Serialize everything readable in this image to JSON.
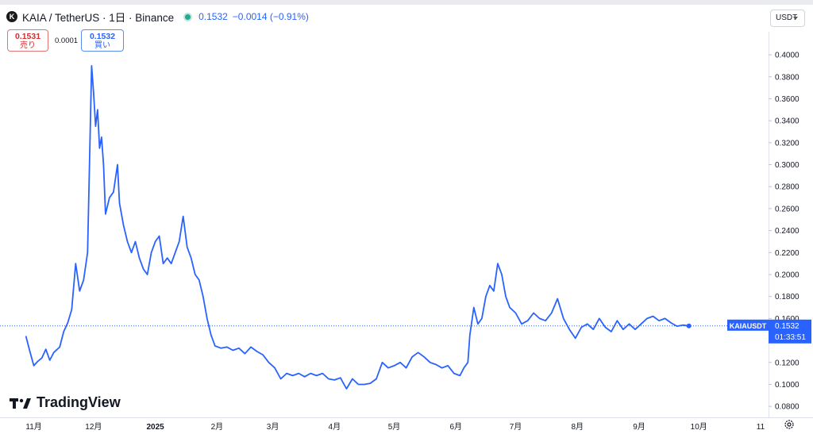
{
  "header": {
    "symbol_icon": "kaia-logo-icon",
    "title": "KAIA / TetherUS · 1日 · Binance",
    "last": "0.1532",
    "change": "−0.0014 (−0.91%)"
  },
  "trade": {
    "sell_price": "0.1531",
    "sell_label": "売り",
    "spread": "0.0001",
    "buy_price": "0.1532",
    "buy_label": "買い"
  },
  "currency_button": "USDT",
  "price_tag": {
    "symbol": "KAIAUSDT",
    "price": "0.1532",
    "countdown": "01:33:51"
  },
  "branding": "TradingView",
  "colors": {
    "line": "#2962ff",
    "price_tag_bg": "#2962ff",
    "dotted_line": "#2962ff"
  },
  "chart_data": {
    "type": "line",
    "series": [
      {
        "name": "KAIAUSDT",
        "points": [
          [
            "2024-10-28",
            0.144
          ],
          [
            "2024-10-30",
            0.13
          ],
          [
            "2024-11-01",
            0.117
          ],
          [
            "2024-11-03",
            0.121
          ],
          [
            "2024-11-05",
            0.124
          ],
          [
            "2024-11-07",
            0.132
          ],
          [
            "2024-11-09",
            0.122
          ],
          [
            "2024-11-11",
            0.129
          ],
          [
            "2024-11-14",
            0.134
          ],
          [
            "2024-11-16",
            0.148
          ],
          [
            "2024-11-18",
            0.156
          ],
          [
            "2024-11-20",
            0.168
          ],
          [
            "2024-11-22",
            0.21
          ],
          [
            "2024-11-24",
            0.185
          ],
          [
            "2024-11-26",
            0.195
          ],
          [
            "2024-11-28",
            0.22
          ],
          [
            "2024-11-30",
            0.39
          ],
          [
            "2024-12-01",
            0.365
          ],
          [
            "2024-12-02",
            0.335
          ],
          [
            "2024-12-03",
            0.35
          ],
          [
            "2024-12-04",
            0.315
          ],
          [
            "2024-12-05",
            0.325
          ],
          [
            "2024-12-06",
            0.3
          ],
          [
            "2024-12-07",
            0.255
          ],
          [
            "2024-12-09",
            0.27
          ],
          [
            "2024-12-11",
            0.275
          ],
          [
            "2024-12-13",
            0.3
          ],
          [
            "2024-12-14",
            0.265
          ],
          [
            "2024-12-16",
            0.245
          ],
          [
            "2024-12-18",
            0.23
          ],
          [
            "2024-12-20",
            0.22
          ],
          [
            "2024-12-22",
            0.23
          ],
          [
            "2024-12-24",
            0.215
          ],
          [
            "2024-12-26",
            0.205
          ],
          [
            "2024-12-28",
            0.2
          ],
          [
            "2024-12-30",
            0.22
          ],
          [
            "2025-01-01",
            0.23
          ],
          [
            "2025-01-03",
            0.235
          ],
          [
            "2025-01-05",
            0.21
          ],
          [
            "2025-01-07",
            0.215
          ],
          [
            "2025-01-09",
            0.21
          ],
          [
            "2025-01-11",
            0.22
          ],
          [
            "2025-01-13",
            0.23
          ],
          [
            "2025-01-15",
            0.253
          ],
          [
            "2025-01-17",
            0.225
          ],
          [
            "2025-01-19",
            0.215
          ],
          [
            "2025-01-21",
            0.2
          ],
          [
            "2025-01-23",
            0.195
          ],
          [
            "2025-01-25",
            0.18
          ],
          [
            "2025-01-27",
            0.16
          ],
          [
            "2025-01-29",
            0.145
          ],
          [
            "2025-01-31",
            0.135
          ],
          [
            "2025-02-03",
            0.133
          ],
          [
            "2025-02-06",
            0.134
          ],
          [
            "2025-02-09",
            0.131
          ],
          [
            "2025-02-12",
            0.133
          ],
          [
            "2025-02-15",
            0.128
          ],
          [
            "2025-02-18",
            0.134
          ],
          [
            "2025-02-21",
            0.13
          ],
          [
            "2025-02-24",
            0.127
          ],
          [
            "2025-02-27",
            0.12
          ],
          [
            "2025-03-02",
            0.115
          ],
          [
            "2025-03-05",
            0.105
          ],
          [
            "2025-03-08",
            0.11
          ],
          [
            "2025-03-11",
            0.108
          ],
          [
            "2025-03-14",
            0.11
          ],
          [
            "2025-03-17",
            0.107
          ],
          [
            "2025-03-20",
            0.11
          ],
          [
            "2025-03-23",
            0.108
          ],
          [
            "2025-03-26",
            0.11
          ],
          [
            "2025-03-29",
            0.105
          ],
          [
            "2025-04-01",
            0.104
          ],
          [
            "2025-04-04",
            0.106
          ],
          [
            "2025-04-07",
            0.096
          ],
          [
            "2025-04-10",
            0.105
          ],
          [
            "2025-04-13",
            0.1
          ],
          [
            "2025-04-16",
            0.1
          ],
          [
            "2025-04-19",
            0.101
          ],
          [
            "2025-04-22",
            0.105
          ],
          [
            "2025-04-25",
            0.12
          ],
          [
            "2025-04-28",
            0.115
          ],
          [
            "2025-05-01",
            0.117
          ],
          [
            "2025-05-04",
            0.12
          ],
          [
            "2025-05-07",
            0.115
          ],
          [
            "2025-05-10",
            0.125
          ],
          [
            "2025-05-13",
            0.129
          ],
          [
            "2025-05-16",
            0.125
          ],
          [
            "2025-05-19",
            0.12
          ],
          [
            "2025-05-22",
            0.118
          ],
          [
            "2025-05-25",
            0.115
          ],
          [
            "2025-05-28",
            0.117
          ],
          [
            "2025-05-31",
            0.11
          ],
          [
            "2025-06-03",
            0.108
          ],
          [
            "2025-06-05",
            0.115
          ],
          [
            "2025-06-07",
            0.12
          ],
          [
            "2025-06-08",
            0.145
          ],
          [
            "2025-06-10",
            0.17
          ],
          [
            "2025-06-12",
            0.155
          ],
          [
            "2025-06-14",
            0.16
          ],
          [
            "2025-06-16",
            0.18
          ],
          [
            "2025-06-18",
            0.19
          ],
          [
            "2025-06-20",
            0.185
          ],
          [
            "2025-06-22",
            0.21
          ],
          [
            "2025-06-24",
            0.2
          ],
          [
            "2025-06-26",
            0.18
          ],
          [
            "2025-06-28",
            0.17
          ],
          [
            "2025-07-01",
            0.165
          ],
          [
            "2025-07-04",
            0.155
          ],
          [
            "2025-07-07",
            0.158
          ],
          [
            "2025-07-10",
            0.165
          ],
          [
            "2025-07-13",
            0.16
          ],
          [
            "2025-07-16",
            0.158
          ],
          [
            "2025-07-19",
            0.165
          ],
          [
            "2025-07-22",
            0.178
          ],
          [
            "2025-07-25",
            0.16
          ],
          [
            "2025-07-28",
            0.15
          ],
          [
            "2025-07-31",
            0.142
          ],
          [
            "2025-08-03",
            0.152
          ],
          [
            "2025-08-06",
            0.155
          ],
          [
            "2025-08-09",
            0.15
          ],
          [
            "2025-08-12",
            0.16
          ],
          [
            "2025-08-15",
            0.152
          ],
          [
            "2025-08-18",
            0.148
          ],
          [
            "2025-08-21",
            0.158
          ],
          [
            "2025-08-24",
            0.15
          ],
          [
            "2025-08-27",
            0.155
          ],
          [
            "2025-08-30",
            0.15
          ],
          [
            "2025-09-02",
            0.155
          ],
          [
            "2025-09-05",
            0.16
          ],
          [
            "2025-09-08",
            0.162
          ],
          [
            "2025-09-11",
            0.158
          ],
          [
            "2025-09-14",
            0.16
          ],
          [
            "2025-09-17",
            0.156
          ],
          [
            "2025-09-20",
            0.153
          ],
          [
            "2025-09-23",
            0.154
          ],
          [
            "2025-09-26",
            0.1532
          ]
        ]
      }
    ],
    "xlim": [
      "2024-10-15",
      "2025-11-05"
    ],
    "ylim": [
      0.07,
      0.421
    ],
    "y_ticks": [
      "0.4000",
      "0.3800",
      "0.3600",
      "0.3400",
      "0.3200",
      "0.3000",
      "0.2800",
      "0.2600",
      "0.2400",
      "0.2200",
      "0.2000",
      "0.1800",
      "0.1600",
      "0.1400",
      "0.1200",
      "0.1000",
      "0.0800"
    ],
    "x_ticks": [
      {
        "label": "11月",
        "date": "2024-11-01"
      },
      {
        "label": "12月",
        "date": "2024-12-01"
      },
      {
        "label": "2025",
        "date": "2025-01-01"
      },
      {
        "label": "2月",
        "date": "2025-02-01"
      },
      {
        "label": "3月",
        "date": "2025-03-01"
      },
      {
        "label": "4月",
        "date": "2025-04-01"
      },
      {
        "label": "5月",
        "date": "2025-05-01"
      },
      {
        "label": "6月",
        "date": "2025-06-01"
      },
      {
        "label": "7月",
        "date": "2025-07-01"
      },
      {
        "label": "8月",
        "date": "2025-08-01"
      },
      {
        "label": "9月",
        "date": "2025-09-01"
      },
      {
        "label": "10月",
        "date": "2025-10-01"
      },
      {
        "label": "11",
        "date": "2025-11-01"
      }
    ],
    "last_value": 0.1532,
    "grid": false
  }
}
